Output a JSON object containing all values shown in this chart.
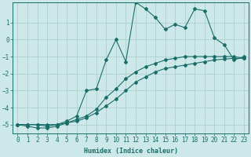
{
  "xlabel": "Humidex (Indice chaleur)",
  "bg_color": "#cde8e8",
  "grid_color": "#aed0d0",
  "line_color": "#1a6e6a",
  "xlim": [
    -0.5,
    23.5
  ],
  "ylim": [
    -5.5,
    2.2
  ],
  "xticks": [
    0,
    1,
    2,
    3,
    4,
    5,
    6,
    7,
    8,
    9,
    10,
    11,
    12,
    13,
    14,
    15,
    16,
    17,
    18,
    19,
    20,
    21,
    22,
    23
  ],
  "yticks": [
    -5,
    -4,
    -3,
    -2,
    -1,
    0,
    1
  ],
  "line1_x": [
    0,
    1,
    2,
    3,
    4,
    5,
    6,
    7,
    8,
    9,
    10,
    11,
    12,
    13,
    14,
    15,
    16,
    17,
    18,
    19,
    20,
    21,
    22,
    23
  ],
  "line1_y": [
    -5,
    -5,
    -5,
    -5,
    -5,
    -4.9,
    -4.8,
    -4.6,
    -4.3,
    -3.9,
    -3.5,
    -3.0,
    -2.5,
    -2.2,
    -1.9,
    -1.7,
    -1.6,
    -1.5,
    -1.4,
    -1.3,
    -1.2,
    -1.15,
    -1.1,
    -1.1
  ],
  "line2_x": [
    0,
    1,
    2,
    3,
    4,
    5,
    6,
    7,
    8,
    9,
    10,
    11,
    12,
    13,
    14,
    15,
    16,
    17,
    18,
    19,
    20,
    21,
    22,
    23
  ],
  "line2_y": [
    -5,
    -5.1,
    -5.2,
    -5.2,
    -5.1,
    -4.9,
    -4.7,
    -4.5,
    -4.1,
    -3.4,
    -2.9,
    -2.3,
    -1.9,
    -1.6,
    -1.4,
    -1.2,
    -1.1,
    -1.0,
    -1.0,
    -1.0,
    -1.0,
    -1.0,
    -1.0,
    -1.1
  ],
  "line3_x": [
    0,
    1,
    2,
    3,
    4,
    5,
    6,
    7,
    8,
    9,
    10,
    11,
    12,
    13,
    14,
    15,
    16,
    17,
    18,
    19,
    20,
    21,
    22,
    23
  ],
  "line3_y": [
    -5,
    -5,
    -5,
    -5.1,
    -5.0,
    -4.8,
    -4.5,
    -3.0,
    -2.9,
    -1.2,
    0.0,
    -1.3,
    2.2,
    1.8,
    1.3,
    0.6,
    0.9,
    0.7,
    1.8,
    1.7,
    0.1,
    -0.3,
    -1.2,
    -1.0
  ]
}
